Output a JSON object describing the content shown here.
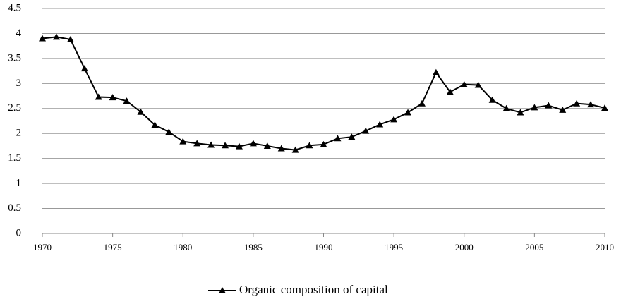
{
  "chart_data": {
    "type": "line",
    "x": [
      1970,
      1971,
      1972,
      1973,
      1974,
      1975,
      1976,
      1977,
      1978,
      1979,
      1980,
      1981,
      1982,
      1983,
      1984,
      1985,
      1986,
      1987,
      1988,
      1989,
      1990,
      1991,
      1992,
      1993,
      1994,
      1995,
      1996,
      1997,
      1998,
      1999,
      2000,
      2001,
      2002,
      2003,
      2004,
      2005,
      2006,
      2007,
      2008,
      2009,
      2010
    ],
    "series": [
      {
        "name": "Organic composition of capital",
        "color": "#000000",
        "values": [
          3.9,
          3.93,
          3.88,
          3.3,
          2.73,
          2.72,
          2.65,
          2.43,
          2.17,
          2.03,
          1.84,
          1.8,
          1.77,
          1.76,
          1.74,
          1.8,
          1.75,
          1.7,
          1.67,
          1.76,
          1.78,
          1.9,
          1.93,
          2.05,
          2.18,
          2.28,
          2.42,
          2.6,
          3.22,
          2.83,
          2.98,
          2.97,
          2.67,
          2.5,
          2.42,
          2.52,
          2.56,
          2.47,
          2.6,
          2.58,
          2.51
        ]
      }
    ],
    "xlim": [
      1970,
      2010
    ],
    "xticks": [
      1970,
      1975,
      1980,
      1985,
      1990,
      1995,
      2000,
      2005,
      2010
    ],
    "ylim": [
      0,
      4.5
    ],
    "yticks": [
      0,
      0.5,
      1,
      1.5,
      2,
      2.5,
      3,
      3.5,
      4,
      4.5
    ],
    "grid": true,
    "legend": "bottom"
  }
}
